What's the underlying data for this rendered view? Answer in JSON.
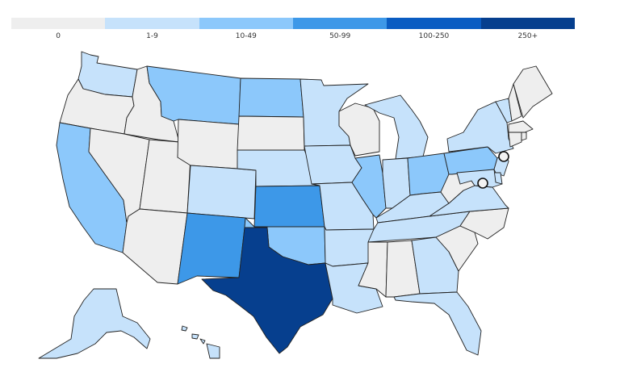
{
  "legend": {
    "bins": [
      {
        "label": "0",
        "color": "#eeeeee"
      },
      {
        "label": "1-9",
        "color": "#c6e2fb"
      },
      {
        "label": "10-49",
        "color": "#8cc8fb"
      },
      {
        "label": "50-99",
        "color": "#3d98e8"
      },
      {
        "label": "100-250",
        "color": "#0a5cc2"
      },
      {
        "label": "250+",
        "color": "#063f8e"
      }
    ]
  },
  "map": {
    "region": "United States",
    "states": {
      "WA": "1-9",
      "OR": "0",
      "CA": "10-49",
      "ID": "0",
      "NV": "0",
      "UT": "0",
      "AZ": "0",
      "MT": "10-49",
      "WY": "0",
      "CO": "1-9",
      "NM": "50-99",
      "ND": "10-49",
      "SD": "0",
      "NE": "1-9",
      "KS": "50-99",
      "OK": "10-49",
      "TX": "250+",
      "MN": "1-9",
      "IA": "1-9",
      "MO": "1-9",
      "AR": "1-9",
      "LA": "1-9",
      "WI": "0",
      "IL": "10-49",
      "MI": "1-9",
      "IN": "1-9",
      "OH": "10-49",
      "KY": "1-9",
      "TN": "1-9",
      "MS": "0",
      "AL": "0",
      "GA": "1-9",
      "FL": "1-9",
      "SC": "0",
      "NC": "0",
      "VA": "1-9",
      "WV": "0",
      "PA": "10-49",
      "NY": "1-9",
      "VT": "1-9",
      "NH": "0",
      "ME": "0",
      "MA": "0",
      "CT": "0",
      "RI": "0",
      "NJ": "1-9",
      "DE": "1-9",
      "MD": "1-9",
      "DC": "0",
      "AK": "1-9",
      "HI": "1-9"
    },
    "markers": [
      "DC",
      "NJ"
    ]
  }
}
